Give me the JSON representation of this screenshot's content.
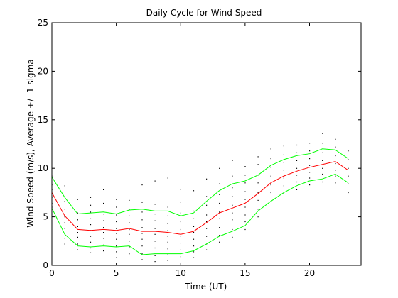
{
  "chart_data": {
    "type": "line",
    "title": "Daily Cycle for Wind Speed",
    "xlabel": "Time (UT)",
    "ylabel": "Wind Speed (m/s), Average +/- 1 sigma",
    "xlim": [
      0,
      24
    ],
    "ylim": [
      0,
      25
    ],
    "xticks": [
      0,
      5,
      10,
      15,
      20
    ],
    "yticks": [
      0,
      5,
      10,
      15,
      20,
      25
    ],
    "grid": false,
    "x": [
      0,
      1,
      2,
      3,
      4,
      5,
      6,
      7,
      8,
      9,
      10,
      11,
      12,
      13,
      14,
      15,
      16,
      17,
      18,
      19,
      20,
      21,
      22,
      23
    ],
    "series": [
      {
        "color": "#00ff00",
        "values": [
          9.1,
          7.0,
          5.3,
          5.4,
          5.5,
          5.3,
          5.7,
          5.8,
          5.6,
          5.6,
          5.1,
          5.4,
          6.6,
          7.7,
          8.4,
          8.7,
          9.3,
          10.3,
          10.9,
          11.3,
          11.5,
          12.0,
          11.9,
          11.0
        ]
      },
      {
        "color": "#ff0000",
        "values": [
          7.5,
          5.1,
          3.7,
          3.6,
          3.7,
          3.6,
          3.8,
          3.5,
          3.5,
          3.4,
          3.2,
          3.5,
          4.4,
          5.4,
          5.9,
          6.4,
          7.4,
          8.5,
          9.2,
          9.7,
          10.1,
          10.4,
          10.7,
          9.8
        ]
      },
      {
        "color": "#00ff00",
        "values": [
          5.9,
          3.2,
          2.0,
          1.9,
          2.0,
          1.9,
          2.0,
          1.1,
          1.2,
          1.2,
          1.2,
          1.5,
          2.2,
          3.0,
          3.5,
          4.1,
          5.6,
          6.6,
          7.5,
          8.2,
          8.7,
          8.9,
          9.4,
          8.5
        ]
      }
    ],
    "scatter": {
      "color": "#000000",
      "points": [
        [
          0,
          9.2
        ],
        [
          0,
          8.3
        ],
        [
          0,
          7.8
        ],
        [
          0,
          7.0
        ],
        [
          0,
          6.4
        ],
        [
          0,
          6.0
        ],
        [
          0,
          5.3
        ],
        [
          1,
          8.2
        ],
        [
          1,
          6.6
        ],
        [
          1,
          5.8
        ],
        [
          1,
          5.0
        ],
        [
          1,
          4.4
        ],
        [
          1,
          3.8
        ],
        [
          1,
          2.8
        ],
        [
          1,
          2.2
        ],
        [
          2,
          6.8
        ],
        [
          2,
          5.4
        ],
        [
          2,
          4.7
        ],
        [
          2,
          4.0
        ],
        [
          2,
          3.4
        ],
        [
          2,
          2.9
        ],
        [
          2,
          2.2
        ],
        [
          2,
          1.6
        ],
        [
          3,
          7.0
        ],
        [
          3,
          6.2
        ],
        [
          3,
          5.5
        ],
        [
          3,
          4.8
        ],
        [
          3,
          4.2
        ],
        [
          3,
          3.6
        ],
        [
          3,
          3.0
        ],
        [
          3,
          2.4
        ],
        [
          3,
          1.8
        ],
        [
          3,
          1.3
        ],
        [
          4,
          7.8
        ],
        [
          4,
          6.4
        ],
        [
          4,
          5.3
        ],
        [
          4,
          4.6
        ],
        [
          4,
          3.9
        ],
        [
          4,
          3.4
        ],
        [
          4,
          2.8
        ],
        [
          4,
          2.1
        ],
        [
          4,
          1.5
        ],
        [
          5,
          6.8
        ],
        [
          5,
          6.0
        ],
        [
          5,
          5.2
        ],
        [
          5,
          4.5
        ],
        [
          5,
          3.8
        ],
        [
          5,
          3.3
        ],
        [
          5,
          2.7
        ],
        [
          5,
          2.0
        ],
        [
          5,
          1.4
        ],
        [
          5,
          0.8
        ],
        [
          6,
          6.7
        ],
        [
          6,
          5.8
        ],
        [
          6,
          5.1
        ],
        [
          6,
          4.4
        ],
        [
          6,
          3.7
        ],
        [
          6,
          3.2
        ],
        [
          6,
          2.5
        ],
        [
          6,
          1.9
        ],
        [
          6,
          1.2
        ],
        [
          7,
          8.3
        ],
        [
          7,
          6.5
        ],
        [
          7,
          5.5
        ],
        [
          7,
          4.7
        ],
        [
          7,
          3.9
        ],
        [
          7,
          3.3
        ],
        [
          7,
          2.7
        ],
        [
          7,
          2.0
        ],
        [
          7,
          1.2
        ],
        [
          7,
          0.6
        ],
        [
          8,
          8.7
        ],
        [
          8,
          6.3
        ],
        [
          8,
          5.3
        ],
        [
          8,
          4.6
        ],
        [
          8,
          3.8
        ],
        [
          8,
          3.2
        ],
        [
          8,
          2.5
        ],
        [
          8,
          1.8
        ],
        [
          8,
          1.0
        ],
        [
          8,
          0.4
        ],
        [
          9,
          9.0
        ],
        [
          9,
          6.0
        ],
        [
          9,
          5.1
        ],
        [
          9,
          4.3
        ],
        [
          9,
          3.6
        ],
        [
          9,
          3.0
        ],
        [
          9,
          2.4
        ],
        [
          9,
          1.7
        ],
        [
          9,
          1.1
        ],
        [
          9,
          0.5
        ],
        [
          10,
          7.8
        ],
        [
          10,
          6.5
        ],
        [
          10,
          5.4
        ],
        [
          10,
          4.5
        ],
        [
          10,
          3.7
        ],
        [
          10,
          3.0
        ],
        [
          10,
          2.3
        ],
        [
          10,
          1.6
        ],
        [
          10,
          0.9
        ],
        [
          11,
          7.7
        ],
        [
          11,
          5.6
        ],
        [
          11,
          4.8
        ],
        [
          11,
          4.0
        ],
        [
          11,
          3.4
        ],
        [
          11,
          2.7
        ],
        [
          11,
          2.0
        ],
        [
          11,
          1.4
        ],
        [
          11,
          0.8
        ],
        [
          12,
          8.9
        ],
        [
          12,
          7.1
        ],
        [
          12,
          6.2
        ],
        [
          12,
          5.2
        ],
        [
          12,
          4.5
        ],
        [
          12,
          3.8
        ],
        [
          12,
          3.0
        ],
        [
          12,
          2.2
        ],
        [
          12,
          1.6
        ],
        [
          13,
          10.0
        ],
        [
          13,
          8.4
        ],
        [
          13,
          7.3
        ],
        [
          13,
          6.4
        ],
        [
          13,
          5.5
        ],
        [
          13,
          4.8
        ],
        [
          13,
          3.9
        ],
        [
          13,
          3.1
        ],
        [
          13,
          2.4
        ],
        [
          14,
          10.8
        ],
        [
          14,
          9.2
        ],
        [
          14,
          8.0
        ],
        [
          14,
          7.1
        ],
        [
          14,
          6.2
        ],
        [
          14,
          5.4
        ],
        [
          14,
          4.7
        ],
        [
          14,
          3.7
        ],
        [
          14,
          2.9
        ],
        [
          15,
          10.2
        ],
        [
          15,
          9.3
        ],
        [
          15,
          8.5
        ],
        [
          15,
          7.6
        ],
        [
          15,
          6.8
        ],
        [
          15,
          6.0
        ],
        [
          15,
          5.2
        ],
        [
          15,
          4.5
        ],
        [
          15,
          3.7
        ],
        [
          16,
          11.2
        ],
        [
          16,
          10.4
        ],
        [
          16,
          9.3
        ],
        [
          16,
          8.5
        ],
        [
          16,
          7.5
        ],
        [
          16,
          6.7
        ],
        [
          16,
          5.8
        ],
        [
          16,
          5.0
        ],
        [
          17,
          12.0
        ],
        [
          17,
          11.0
        ],
        [
          17,
          10.1
        ],
        [
          17,
          9.2
        ],
        [
          17,
          8.3
        ],
        [
          17,
          7.5
        ],
        [
          17,
          6.6
        ],
        [
          18,
          12.3
        ],
        [
          18,
          11.4
        ],
        [
          18,
          10.6
        ],
        [
          18,
          9.8
        ],
        [
          18,
          9.0
        ],
        [
          18,
          8.2
        ],
        [
          18,
          7.4
        ],
        [
          19,
          12.4
        ],
        [
          19,
          11.6
        ],
        [
          19,
          10.8
        ],
        [
          19,
          10.0
        ],
        [
          19,
          9.3
        ],
        [
          19,
          8.6
        ],
        [
          19,
          7.8
        ],
        [
          20,
          12.6
        ],
        [
          20,
          11.8
        ],
        [
          20,
          11.0
        ],
        [
          20,
          10.3
        ],
        [
          20,
          9.6
        ],
        [
          20,
          9.0
        ],
        [
          20,
          8.3
        ],
        [
          21,
          13.6
        ],
        [
          21,
          12.6
        ],
        [
          21,
          11.6
        ],
        [
          21,
          10.8
        ],
        [
          21,
          10.0
        ],
        [
          21,
          9.4
        ],
        [
          21,
          8.6
        ],
        [
          22,
          13.0
        ],
        [
          22,
          12.2
        ],
        [
          22,
          11.3
        ],
        [
          22,
          10.5
        ],
        [
          22,
          9.8
        ],
        [
          22,
          9.2
        ],
        [
          22,
          8.5
        ],
        [
          23,
          11.8
        ],
        [
          23,
          10.9
        ],
        [
          23,
          10.0
        ],
        [
          23,
          9.2
        ],
        [
          23,
          8.4
        ],
        [
          23,
          7.5
        ]
      ]
    }
  }
}
